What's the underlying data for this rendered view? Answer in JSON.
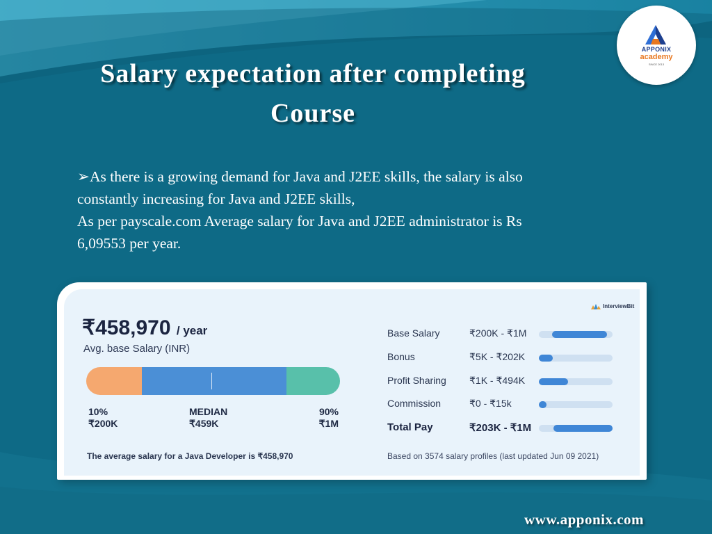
{
  "header": {
    "title_line1": "Salary expectation after completing",
    "title_line2": "Course"
  },
  "logo": {
    "brand": "APPONIX",
    "sub": "academy",
    "since": "SINCE 2013"
  },
  "body_text": {
    "bullet": "➢",
    "line1": "As there is a growing demand for Java and J2EE skills, the salary is also",
    "line2": "constantly increasing for Java and J2EE skills,",
    "line3": "As per payscale.com Average salary for Java and J2EE administrator is Rs",
    "line4": "6,09553 per year."
  },
  "salary_card": {
    "source_brand": "InterviewBit",
    "avg_salary": "₹458,970",
    "per_year": "/ year",
    "avg_label": "Avg. base Salary (INR)",
    "percentiles": {
      "low_label": "10%",
      "low_value": "₹200K",
      "mid_label": "MEDIAN",
      "mid_value": "₹459K",
      "high_label": "90%",
      "high_value": "₹1M"
    },
    "footer_left": "The average salary for a Java Developer is ₹458,970",
    "footer_right": "Based on 3574 salary profiles (last updated Jun 09 2021)",
    "rows": [
      {
        "label": "Base Salary",
        "range": "₹200K - ₹1M",
        "fill_start": 0.18,
        "fill_end": 0.92
      },
      {
        "label": "Bonus",
        "range": "₹5K - ₹202K",
        "fill_start": 0.0,
        "fill_end": 0.19
      },
      {
        "label": "Profit Sharing",
        "range": "₹1K - ₹494K",
        "fill_start": 0.0,
        "fill_end": 0.4
      },
      {
        "label": "Commission",
        "range": "₹0 - ₹15k",
        "fill_start": 0.0,
        "fill_end": 0.1
      },
      {
        "label": "Total Pay",
        "range": "₹203K - ₹1M",
        "fill_start": 0.2,
        "fill_end": 1.0
      }
    ]
  },
  "footer": {
    "url": "www.apponix.com"
  }
}
